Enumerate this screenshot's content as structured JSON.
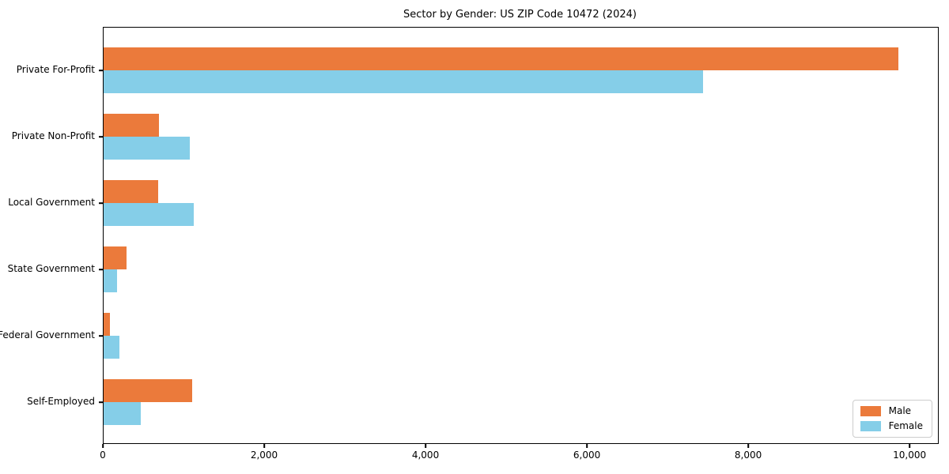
{
  "title": "Sector by Gender: US ZIP Code 10472 (2024)",
  "colors": {
    "male": "#EB7A3B",
    "female": "#85CEE8",
    "spine": "#000000",
    "background": "#ffffff",
    "legend_border": "#cccccc"
  },
  "legend": {
    "position": "lower right",
    "items": [
      {
        "label": "Male",
        "color": "#EB7A3B"
      },
      {
        "label": "Female",
        "color": "#85CEE8"
      }
    ]
  },
  "chart_data": {
    "type": "bar",
    "orientation": "horizontal",
    "title": "Sector by Gender: US ZIP Code 10472 (2024)",
    "categories": [
      "Private For-Profit",
      "Private Non-Profit",
      "Local Government",
      "State Government",
      "Federal Government",
      "Self-Employed"
    ],
    "series": [
      {
        "name": "Male",
        "color": "#EB7A3B",
        "values": [
          9850,
          690,
          680,
          280,
          80,
          1100
        ]
      },
      {
        "name": "Female",
        "color": "#85CEE8",
        "values": [
          7430,
          1070,
          1120,
          170,
          200,
          460
        ]
      }
    ],
    "xlabel": "",
    "ylabel": "",
    "xlim": [
      0,
      10342
    ],
    "xticks": [
      0,
      2000,
      4000,
      6000,
      8000,
      10000
    ],
    "xtick_labels": [
      "0",
      "2,000",
      "4,000",
      "6,000",
      "8,000",
      "10,000"
    ],
    "grid": false,
    "legend_position": "lower right"
  }
}
